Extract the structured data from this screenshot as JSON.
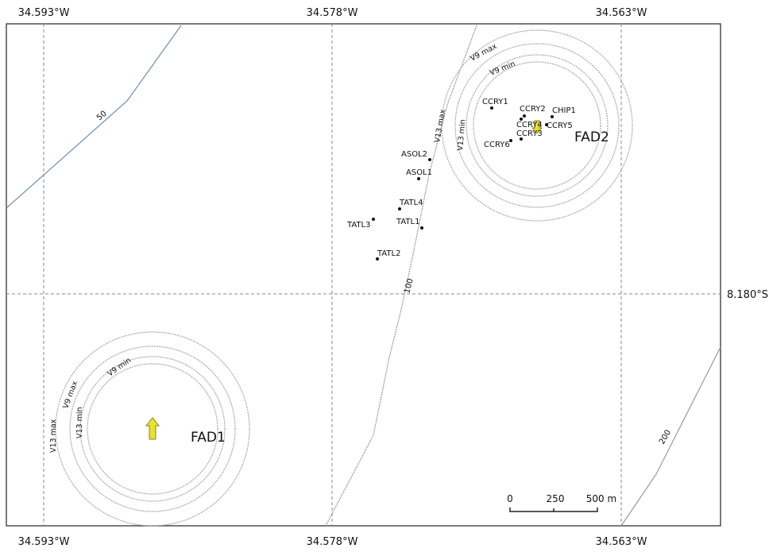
{
  "coordinates": {
    "top": [
      "34.593°W",
      "34.578°W",
      "34.563°W"
    ],
    "bottom": [
      "34.593°W",
      "34.578°W",
      "34.563°W"
    ],
    "right": [
      "8.180°S"
    ]
  },
  "contours": [
    {
      "label": "50"
    },
    {
      "label": "100"
    },
    {
      "label": "200"
    }
  ],
  "stations": [
    {
      "label": "CCRY1"
    },
    {
      "label": "CCRY2"
    },
    {
      "label": "CHIP1"
    },
    {
      "label": "CCRY4"
    },
    {
      "label": "CCRY5"
    },
    {
      "label": "CCRY3"
    },
    {
      "label": "CCRY6"
    },
    {
      "label": "ASOL2"
    },
    {
      "label": "ASOL1"
    },
    {
      "label": "TATL4"
    },
    {
      "label": "TATL3"
    },
    {
      "label": "TATL1"
    },
    {
      "label": "TATL2"
    }
  ],
  "fads": [
    {
      "label": "FAD1",
      "rings": [
        "V13 max",
        "V9 max",
        "V13 min",
        "V9 min"
      ]
    },
    {
      "label": "FAD2",
      "rings": [
        "V13 max",
        "V9 max",
        "V13 min",
        "V9 min"
      ]
    }
  ],
  "scale_bar": {
    "labels": [
      "0",
      "250",
      "500 m"
    ]
  }
}
